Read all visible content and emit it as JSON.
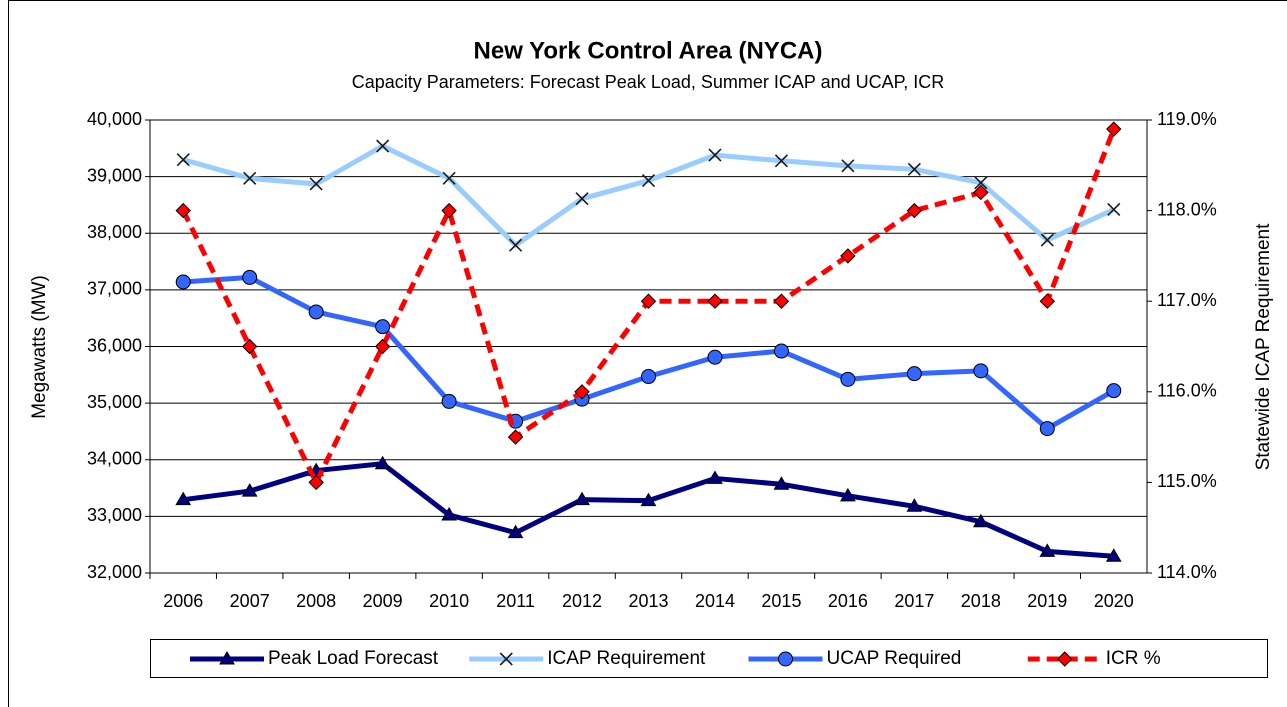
{
  "chart_data": {
    "type": "line",
    "title": "New York Control Area (NYCA)",
    "subtitle": "Capacity Parameters: Forecast Peak Load, Summer ICAP and UCAP, ICR",
    "y_label": "Megawatts (MW)",
    "y2_label": "Statewide ICAP Requirement",
    "categories": [
      "2006",
      "2007",
      "2008",
      "2009",
      "2010",
      "2011",
      "2012",
      "2013",
      "2014",
      "2015",
      "2016",
      "2017",
      "2018",
      "2019",
      "2020"
    ],
    "series": [
      {
        "name": "Peak Load Forecast",
        "color": "#000080",
        "marker": "triangle",
        "dashed": false,
        "values": [
          33295,
          33447,
          33809,
          33930,
          33025,
          32712,
          33295,
          33278,
          33670,
          33567,
          33363,
          33178,
          32904,
          32382,
          32296
        ]
      },
      {
        "name": "ICAP Requirement",
        "color": "#99ccff",
        "marker": "x",
        "dashed": false,
        "values": [
          39300,
          38970,
          38870,
          39540,
          38970,
          37790,
          38610,
          38930,
          39380,
          39280,
          39190,
          39130,
          38890,
          37880,
          38420
        ]
      },
      {
        "name": "UCAP Required",
        "color": "#3366ff",
        "marker": "circle",
        "dashed": false,
        "values": [
          37140,
          37220,
          36610,
          36350,
          35030,
          34680,
          35070,
          35470,
          35810,
          35920,
          35420,
          35520,
          35570,
          34550,
          35220
        ]
      },
      {
        "name": "ICR %",
        "color": "#ff0000",
        "marker": "diamond",
        "dashed": true,
        "axis": "y2",
        "values": [
          118.0,
          116.5,
          115.0,
          116.5,
          118.0,
          115.5,
          116.0,
          117.0,
          117.0,
          117.0,
          117.5,
          118.0,
          118.2,
          117.0,
          118.9
        ]
      }
    ],
    "ylim": [
      32000,
      40000
    ],
    "yticks": [
      {
        "value": 32000,
        "label": "32,000"
      },
      {
        "value": 33000,
        "label": "33,000"
      },
      {
        "value": 34000,
        "label": "34,000"
      },
      {
        "value": 35000,
        "label": "35,000"
      },
      {
        "value": 36000,
        "label": "36,000"
      },
      {
        "value": 37000,
        "label": "37,000"
      },
      {
        "value": 38000,
        "label": "38,000"
      },
      {
        "value": 39000,
        "label": "39,000"
      },
      {
        "value": 40000,
        "label": "40,000"
      }
    ],
    "y2lim": [
      114,
      119
    ],
    "y2ticks": [
      {
        "value": 114,
        "label": "114.0%"
      },
      {
        "value": 115,
        "label": "115.0%"
      },
      {
        "value": 116,
        "label": "116.0%"
      },
      {
        "value": 117,
        "label": "117.0%"
      },
      {
        "value": 118,
        "label": "118.0%"
      },
      {
        "value": 119,
        "label": "119.0%"
      }
    ],
    "grid": true,
    "legend": "bottom"
  }
}
